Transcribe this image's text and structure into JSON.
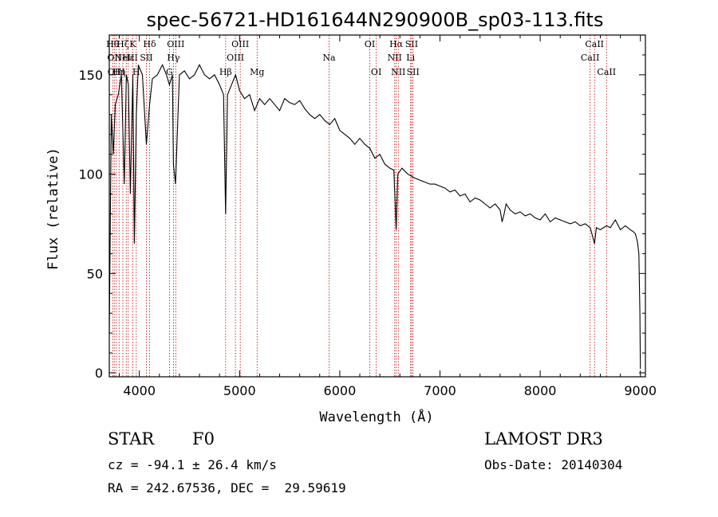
{
  "chart_data": {
    "type": "line",
    "title": "spec-56721-HD161644N290900B_sp03-113.fits",
    "xlabel": "Wavelength (Å)",
    "ylabel": "Flux (relative)",
    "xlim": [
      3700,
      9050
    ],
    "ylim": [
      -2,
      170
    ],
    "xticks": [
      4000,
      5000,
      6000,
      7000,
      8000,
      9000
    ],
    "yticks": [
      0,
      50,
      100,
      150
    ],
    "series": [
      {
        "name": "flux",
        "x": [
          3700,
          3720,
          3740,
          3760,
          3790,
          3820,
          3850,
          3870,
          3890,
          3910,
          3935,
          3950,
          3970,
          3990,
          4030,
          4070,
          4102,
          4130,
          4180,
          4230,
          4270,
          4300,
          4330,
          4340,
          4361,
          4400,
          4450,
          4500,
          4550,
          4600,
          4650,
          4700,
          4750,
          4800,
          4840,
          4861,
          4880,
          4920,
          4960,
          5000,
          5050,
          5100,
          5150,
          5200,
          5250,
          5300,
          5350,
          5400,
          5450,
          5500,
          5550,
          5600,
          5650,
          5700,
          5750,
          5800,
          5850,
          5900,
          5950,
          6000,
          6050,
          6100,
          6150,
          6200,
          6250,
          6300,
          6350,
          6400,
          6450,
          6500,
          6540,
          6563,
          6580,
          6620,
          6680,
          6750,
          6800,
          6850,
          6900,
          6950,
          7000,
          7050,
          7100,
          7150,
          7200,
          7250,
          7300,
          7350,
          7400,
          7450,
          7500,
          7550,
          7600,
          7620,
          7640,
          7660,
          7700,
          7750,
          7800,
          7850,
          7900,
          7950,
          8000,
          8050,
          8100,
          8150,
          8200,
          8250,
          8300,
          8350,
          8400,
          8450,
          8500,
          8542,
          8560,
          8600,
          8662,
          8700,
          8750,
          8800,
          8850,
          8900,
          8930,
          8950,
          8970,
          8985,
          8995,
          9000
        ],
        "y": [
          20,
          130,
          110,
          135,
          140,
          150,
          95,
          150,
          145,
          90,
          150,
          65,
          130,
          155,
          150,
          115,
          135,
          148,
          150,
          155,
          150,
          145,
          150,
          105,
          95,
          150,
          152,
          148,
          150,
          155,
          150,
          148,
          150,
          145,
          140,
          80,
          140,
          145,
          150,
          142,
          138,
          140,
          132,
          138,
          135,
          138,
          135,
          132,
          138,
          136,
          135,
          137,
          133,
          130,
          128,
          130,
          127,
          125,
          128,
          122,
          120,
          118,
          115,
          118,
          115,
          113,
          108,
          110,
          105,
          103,
          102,
          72,
          100,
          103,
          100,
          98,
          97,
          96,
          95,
          95,
          94,
          93,
          91,
          92,
          89,
          90,
          86,
          88,
          87,
          85,
          83,
          85,
          82,
          76,
          80,
          85,
          82,
          80,
          81,
          79,
          80,
          78,
          77,
          80,
          76,
          78,
          77,
          76,
          75,
          76,
          74,
          75,
          73,
          65,
          73,
          72,
          74,
          73,
          77,
          72,
          74,
          72,
          71,
          70,
          66,
          60,
          30,
          2
        ]
      }
    ],
    "lines": [
      {
        "wl": 3734,
        "label": "Hθ",
        "row": 0
      },
      {
        "wl": 3750,
        "label": "OII",
        "row": 1
      },
      {
        "wl": 3770,
        "label": "OIII",
        "row": 2
      },
      {
        "wl": 3798,
        "label": "Hη",
        "row": 2
      },
      {
        "wl": 3835,
        "label": "Hζ",
        "row": 0
      },
      {
        "wl": 3869,
        "label": "NeIII",
        "row": 1
      },
      {
        "wl": 3889,
        "label": "Hε",
        "row": 1
      },
      {
        "wl": 3934,
        "label": "K",
        "row": 0
      },
      {
        "wl": 3969,
        "label": "H",
        "row": 2
      },
      {
        "wl": 4070,
        "label": "SII",
        "row": 1
      },
      {
        "wl": 4102,
        "label": "Hδ",
        "row": 0
      },
      {
        "wl": 4300,
        "label": "G",
        "row": 2
      },
      {
        "wl": 4340,
        "label": "Hγ",
        "row": 1
      },
      {
        "wl": 4363,
        "label": "OIII",
        "row": 0
      },
      {
        "wl": 4861,
        "label": "Hβ",
        "row": 2
      },
      {
        "wl": 4959,
        "label": "OIII",
        "row": 1
      },
      {
        "wl": 5007,
        "label": "OIII",
        "row": 0
      },
      {
        "wl": 5175,
        "label": "Mg",
        "row": 2
      },
      {
        "wl": 5893,
        "label": "Na",
        "row": 1
      },
      {
        "wl": 6300,
        "label": "OI",
        "row": 0
      },
      {
        "wl": 6364,
        "label": "OI",
        "row": 2
      },
      {
        "wl": 6548,
        "label": "NII",
        "row": 1
      },
      {
        "wl": 6563,
        "label": "Hα",
        "row": 0
      },
      {
        "wl": 6584,
        "label": "NII",
        "row": 2
      },
      {
        "wl": 6707,
        "label": "Li",
        "row": 1
      },
      {
        "wl": 6717,
        "label": "SII",
        "row": 0
      },
      {
        "wl": 6731,
        "label": "SII",
        "row": 2
      },
      {
        "wl": 8498,
        "label": "CaII",
        "row": 1
      },
      {
        "wl": 8542,
        "label": "CaII",
        "row": 0
      },
      {
        "wl": 8662,
        "label": "CaII",
        "row": 2
      }
    ],
    "line_color": "#c00000",
    "spectrum_color": "#000000"
  },
  "info": {
    "class": "STAR",
    "subclass": "F0",
    "survey": "LAMOST DR3",
    "cz": "cz = -94.1 ± 26.4 km/s",
    "obs_date": "Obs-Date: 20140304",
    "radec": "RA = 242.67536, DEC =  29.59619"
  }
}
